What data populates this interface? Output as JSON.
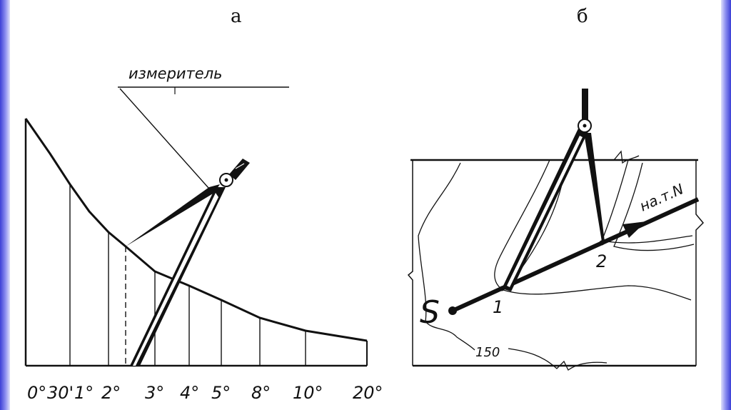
{
  "panels": {
    "a": {
      "label": "а",
      "instrument_label": "измеритель",
      "ticks": [
        "0°",
        "30'",
        "1°",
        "2°",
        "3°",
        "4°",
        "5°",
        "8°",
        "10°",
        "20°"
      ]
    },
    "b": {
      "label": "б",
      "point_s": "S",
      "point_1": "1",
      "point_2": "2",
      "direction_label": "на.т.N",
      "contour_label": "150"
    }
  },
  "colors": {
    "ink": "#111111",
    "border_dark": "#3b3fd6",
    "border_light": "#dfe0fb"
  }
}
